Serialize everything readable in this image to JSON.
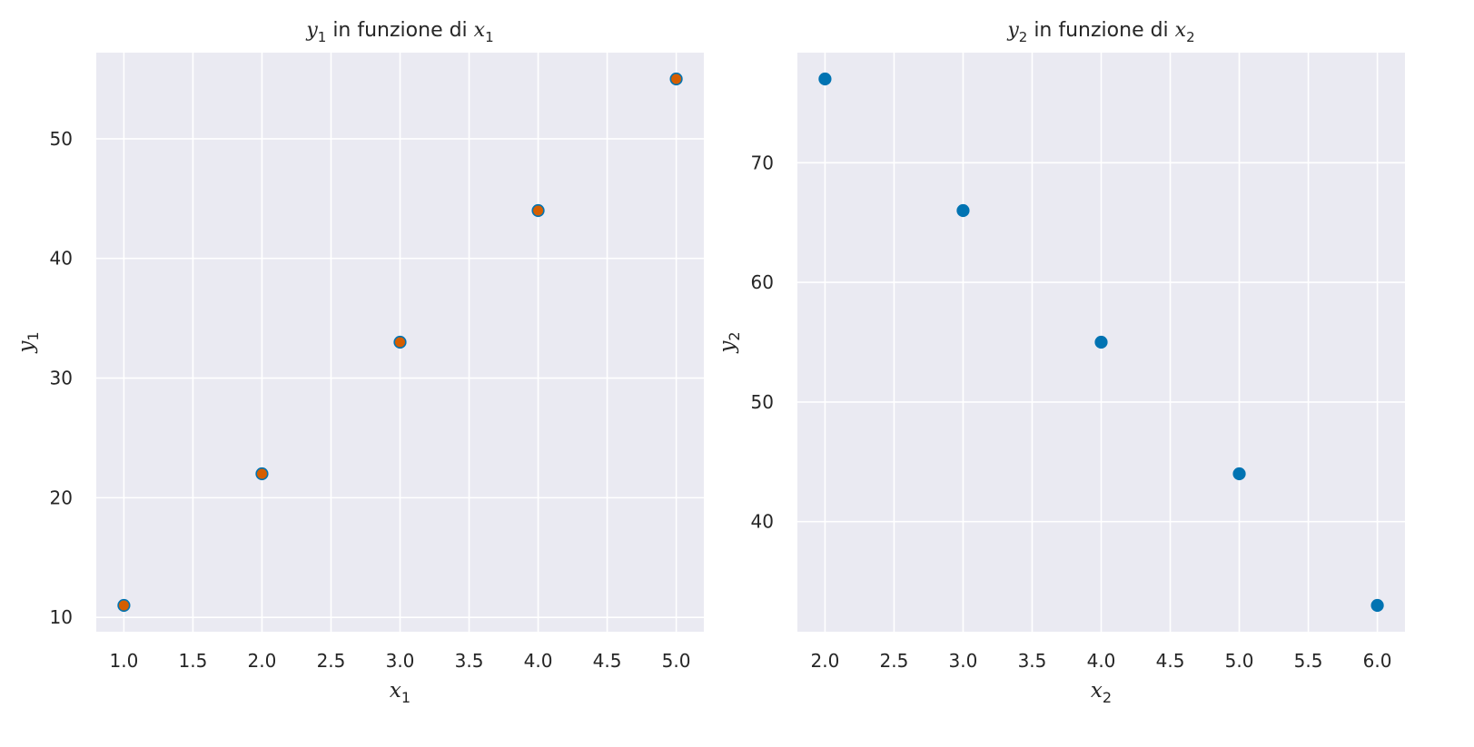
{
  "chart_data": [
    {
      "type": "scatter",
      "title": {
        "var": "y",
        "sub": "1",
        "text": " in funzione di ",
        "var2": "x",
        "sub2": "1"
      },
      "xlabel": {
        "var": "x",
        "sub": "1"
      },
      "ylabel": {
        "var": "y",
        "sub": "1"
      },
      "x": [
        1,
        2,
        3,
        4,
        5
      ],
      "y": [
        11,
        22,
        33,
        44,
        55
      ],
      "xlim": [
        0.8,
        5.2
      ],
      "ylim": [
        8.8,
        57.2
      ],
      "xticks": [
        "1.0",
        "1.5",
        "2.0",
        "2.5",
        "3.0",
        "3.5",
        "4.0",
        "4.5",
        "5.0"
      ],
      "yticks": [
        "10",
        "20",
        "30",
        "40",
        "50"
      ],
      "grid": true,
      "marker_fill": "#d55e00",
      "marker_edge": "#0173b2",
      "background": "#eaeaf2"
    },
    {
      "type": "scatter",
      "title": {
        "var": "y",
        "sub": "2",
        "text": " in funzione di ",
        "var2": "x",
        "sub2": "2"
      },
      "xlabel": {
        "var": "x",
        "sub": "2"
      },
      "ylabel": {
        "var": "y",
        "sub": "2"
      },
      "x": [
        2,
        3,
        4,
        5,
        6
      ],
      "y": [
        77,
        66,
        55,
        44,
        33
      ],
      "xlim": [
        1.8,
        6.2
      ],
      "ylim": [
        30.8,
        79.2
      ],
      "xticks": [
        "2.0",
        "2.5",
        "3.0",
        "3.5",
        "4.0",
        "4.5",
        "5.0",
        "5.5",
        "6.0"
      ],
      "yticks": [
        "40",
        "50",
        "60",
        "70"
      ],
      "grid": true,
      "marker_fill": "#0173b2",
      "marker_edge": "#0173b2",
      "background": "#eaeaf2"
    }
  ]
}
